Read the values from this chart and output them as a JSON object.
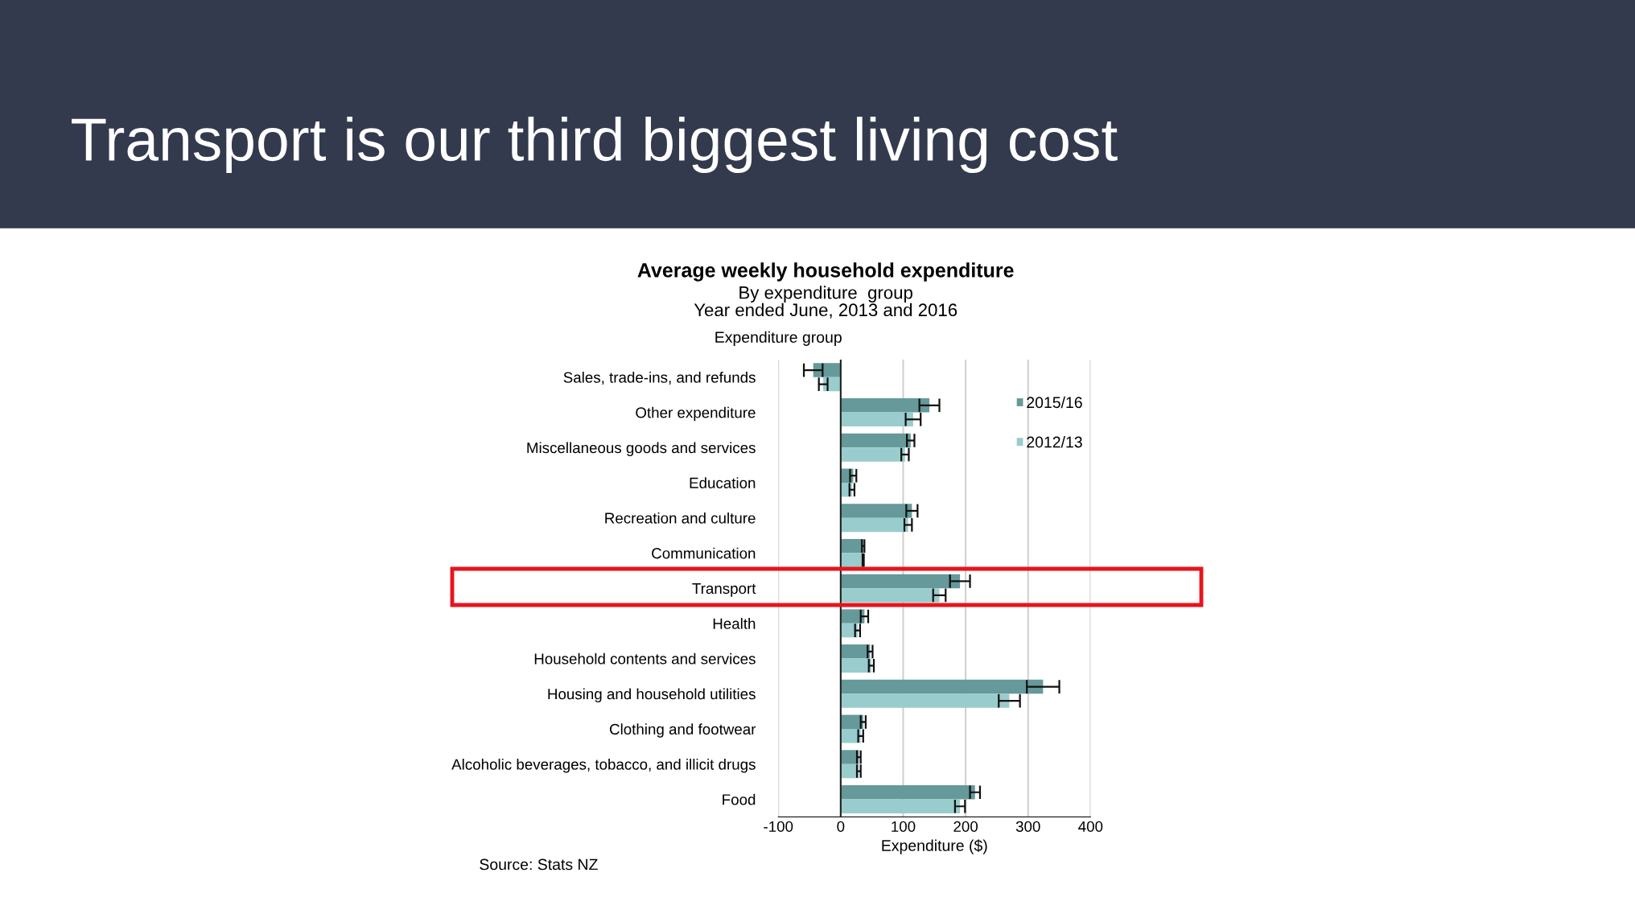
{
  "chart_data": {
    "type": "bar",
    "orientation": "horizontal",
    "title": "Average weekly household expenditure",
    "subtitle": "By expenditure  group\nYear ended June, 2013 and 2016",
    "xlabel": "Expenditure ($)",
    "ylabel": "Expenditure group",
    "annotations": [
      "Transport is our third biggest living cost",
      "Source: Stats NZ"
    ],
    "categories": [
      "Sales, trade-ins, and refunds",
      "Other expenditure",
      "Miscellaneous goods and services",
      "Education",
      "Recreation and culture",
      "Communication",
      "Transport",
      "Health",
      "Household contents and services",
      "Housing and household utilities",
      "Clothing and footwear",
      "Alcoholic beverages, tobacco, and illicit drugs",
      "Food"
    ],
    "series": [
      {
        "name": "2015/16",
        "color": "#669999",
        "values": [
          -44,
          142,
          112,
          20,
          114,
          36,
          191,
          38,
          47,
          324,
          36,
          29,
          215
        ],
        "errors": [
          15,
          16,
          6,
          5,
          9,
          2,
          16,
          6,
          4,
          26,
          4,
          3,
          8
        ]
      },
      {
        "name": "2012/13",
        "color": "#99cccc",
        "values": [
          -28,
          116,
          103,
          18,
          108,
          36,
          158,
          27,
          49,
          270,
          32,
          29,
          191
        ],
        "errors": [
          7,
          12,
          6,
          4,
          6,
          1,
          10,
          4,
          4,
          17,
          4,
          3,
          8
        ]
      }
    ],
    "xlim": [
      -100,
      400
    ],
    "xticks": [
      -100,
      0,
      100,
      200,
      300,
      400
    ],
    "grid": "x",
    "legend": "top right"
  }
}
